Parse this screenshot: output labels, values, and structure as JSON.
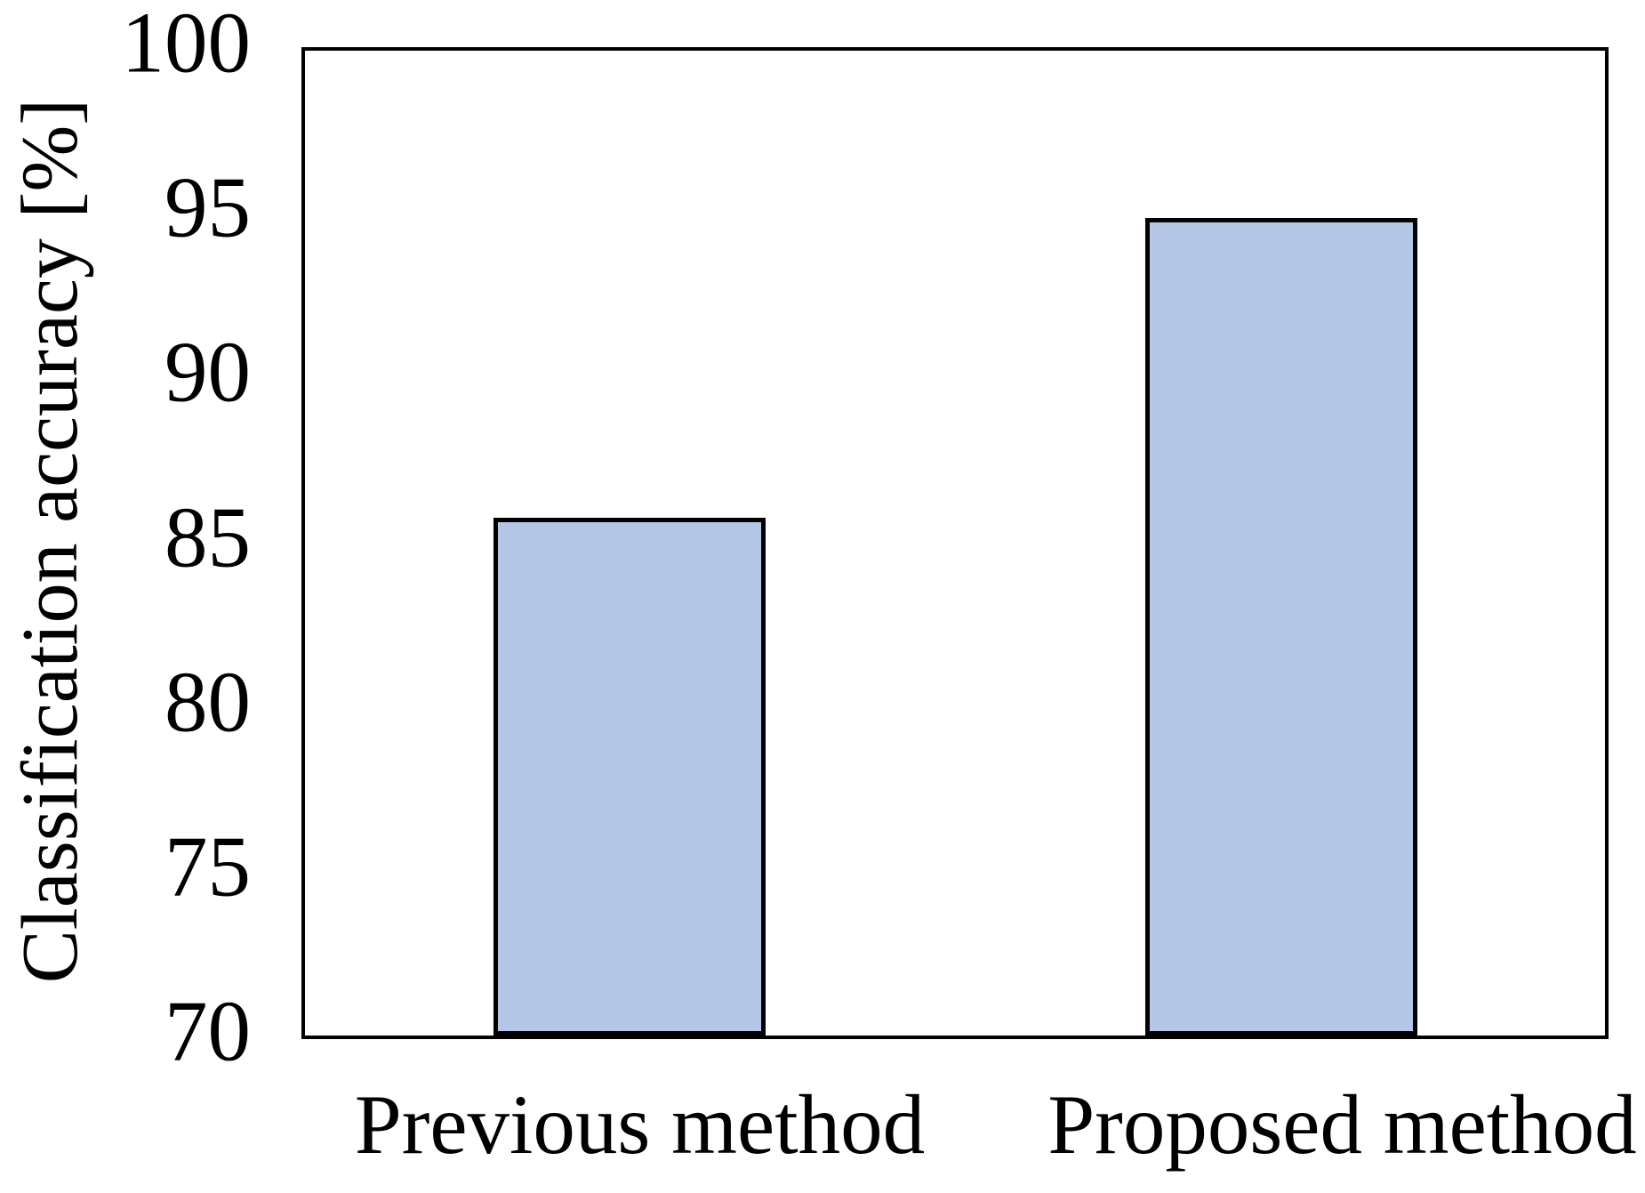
{
  "chart_data": {
    "type": "bar",
    "categories": [
      "Previous method",
      "Proposed method"
    ],
    "values": [
      85.7,
      94.8
    ],
    "title": "",
    "xlabel": "",
    "ylabel": "Classification accuracy [%]",
    "ylim": [
      70,
      100
    ],
    "yticks": [
      70,
      75,
      80,
      85,
      90,
      95,
      100
    ],
    "grid": false,
    "legend": "none",
    "bar_fill_color": "#b4c7e7",
    "bar_border_color": "#000000",
    "axis_color": "#000000",
    "text_color": "#000000",
    "background_color": "#ffffff"
  }
}
